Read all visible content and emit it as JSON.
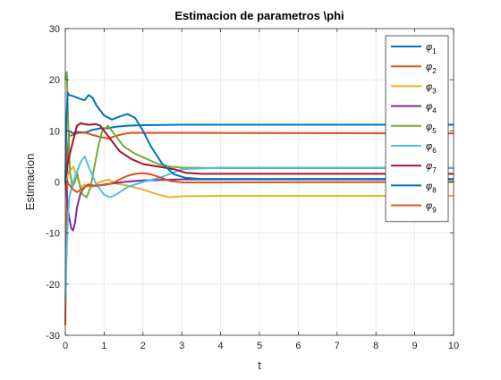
{
  "chart_data": {
    "type": "line",
    "title": "Estimacion de parametros \\phi",
    "xlabel": "t",
    "ylabel": "Estimacion",
    "xlim": [
      0,
      10
    ],
    "ylim": [
      -30,
      30
    ],
    "xticks": [
      0,
      1,
      2,
      3,
      4,
      5,
      6,
      7,
      8,
      9,
      10
    ],
    "yticks": [
      -30,
      -20,
      -10,
      0,
      10,
      20,
      30
    ],
    "xtick_labels": [
      "0",
      "1",
      "2",
      "3",
      "4",
      "5",
      "6",
      "7",
      "8",
      "9",
      "10"
    ],
    "ytick_labels": [
      "-30",
      "-20",
      "-10",
      "0",
      "10",
      "20",
      "30"
    ],
    "grid": true,
    "legend_position": "top-right",
    "series": [
      {
        "name": "φ",
        "sub": "1",
        "color": "#0072BD",
        "points": [
          [
            0,
            0
          ],
          [
            0.05,
            5
          ],
          [
            0.1,
            10
          ],
          [
            0.2,
            9.5
          ],
          [
            0.3,
            9.8
          ],
          [
            0.5,
            9.6
          ],
          [
            0.7,
            10.2
          ],
          [
            0.9,
            10.5
          ],
          [
            1.1,
            10.5
          ],
          [
            1.3,
            10.8
          ],
          [
            1.6,
            11.0
          ],
          [
            2,
            11.1
          ],
          [
            3,
            11.2
          ],
          [
            10,
            11.2
          ]
        ]
      },
      {
        "name": "φ",
        "sub": "2",
        "color": "#D95319",
        "points": [
          [
            0,
            -28
          ],
          [
            0.03,
            -10
          ],
          [
            0.06,
            6
          ],
          [
            0.1,
            9
          ],
          [
            0.2,
            9.2
          ],
          [
            0.3,
            9.5
          ],
          [
            0.5,
            9.7
          ],
          [
            0.7,
            9.2
          ],
          [
            0.9,
            8.8
          ],
          [
            1.1,
            8.5
          ],
          [
            1.3,
            9
          ],
          [
            1.5,
            9.4
          ],
          [
            1.7,
            9.6
          ],
          [
            2,
            9.6
          ],
          [
            3,
            9.6
          ],
          [
            10,
            9.5
          ]
        ]
      },
      {
        "name": "φ",
        "sub": "3",
        "color": "#EDB120",
        "points": [
          [
            0,
            0
          ],
          [
            0.1,
            2
          ],
          [
            0.2,
            3
          ],
          [
            0.3,
            1
          ],
          [
            0.4,
            -1
          ],
          [
            0.5,
            -0.5
          ],
          [
            0.7,
            -1
          ],
          [
            0.9,
            0
          ],
          [
            1.1,
            0.5
          ],
          [
            1.3,
            -0.3
          ],
          [
            1.6,
            -0.7
          ],
          [
            2,
            -1.5
          ],
          [
            2.4,
            -2.5
          ],
          [
            2.7,
            -3
          ],
          [
            3,
            -2.8
          ],
          [
            4,
            -2.7
          ],
          [
            10,
            -2.7
          ]
        ]
      },
      {
        "name": "φ",
        "sub": "4",
        "color": "#7E2F8E",
        "points": [
          [
            0,
            0
          ],
          [
            0.08,
            -6
          ],
          [
            0.15,
            -9
          ],
          [
            0.2,
            -9.5
          ],
          [
            0.25,
            -8
          ],
          [
            0.3,
            -5
          ],
          [
            0.4,
            -2
          ],
          [
            0.5,
            -1
          ],
          [
            0.6,
            -0.5
          ],
          [
            0.8,
            -0.8
          ],
          [
            1,
            -0.5
          ],
          [
            1.5,
            0
          ],
          [
            2,
            0.3
          ],
          [
            3,
            0.5
          ],
          [
            10,
            0.5
          ]
        ]
      },
      {
        "name": "φ",
        "sub": "5",
        "color": "#77AC30",
        "points": [
          [
            0,
            20
          ],
          [
            0.04,
            21.5
          ],
          [
            0.08,
            10
          ],
          [
            0.12,
            2
          ],
          [
            0.18,
            -1
          ],
          [
            0.25,
            0
          ],
          [
            0.3,
            2
          ],
          [
            0.38,
            -1
          ],
          [
            0.45,
            -2.5
          ],
          [
            0.55,
            -3
          ],
          [
            0.65,
            -1
          ],
          [
            0.75,
            3
          ],
          [
            0.85,
            7
          ],
          [
            0.95,
            10
          ],
          [
            1.1,
            11
          ],
          [
            1.3,
            9
          ],
          [
            1.5,
            7
          ],
          [
            1.8,
            5.5
          ],
          [
            2.1,
            4.5
          ],
          [
            2.4,
            3.5
          ],
          [
            2.7,
            3
          ],
          [
            3,
            2.8
          ],
          [
            4,
            2.7
          ],
          [
            10,
            2.7
          ]
        ]
      },
      {
        "name": "φ",
        "sub": "6",
        "color": "#4DBEEE",
        "points": [
          [
            0,
            -23
          ],
          [
            0.05,
            -10
          ],
          [
            0.1,
            -3
          ],
          [
            0.2,
            0
          ],
          [
            0.3,
            2
          ],
          [
            0.4,
            4
          ],
          [
            0.5,
            5
          ],
          [
            0.6,
            3
          ],
          [
            0.8,
            -0.5
          ],
          [
            1,
            -2.5
          ],
          [
            1.15,
            -3
          ],
          [
            1.3,
            -2.5
          ],
          [
            1.6,
            -1
          ],
          [
            2,
            0
          ],
          [
            2.5,
            1
          ],
          [
            3,
            2.5
          ],
          [
            4,
            2.8
          ],
          [
            10,
            2.8
          ]
        ]
      },
      {
        "name": "φ",
        "sub": "7",
        "color": "#A2142F",
        "points": [
          [
            0,
            0
          ],
          [
            0.05,
            3
          ],
          [
            0.1,
            5
          ],
          [
            0.2,
            8
          ],
          [
            0.3,
            11
          ],
          [
            0.4,
            11.5
          ],
          [
            0.5,
            11.3
          ],
          [
            0.6,
            11.2
          ],
          [
            0.8,
            11.3
          ],
          [
            0.9,
            11
          ],
          [
            1,
            10
          ],
          [
            1.2,
            8
          ],
          [
            1.4,
            6
          ],
          [
            1.7,
            4.5
          ],
          [
            2,
            3.5
          ],
          [
            2.4,
            3
          ],
          [
            2.8,
            2.5
          ],
          [
            3.1,
            1.8
          ],
          [
            3.5,
            1.6
          ],
          [
            4,
            1.6
          ],
          [
            10,
            1.6
          ]
        ]
      },
      {
        "name": "φ",
        "sub": "8",
        "color": "#0072BD",
        "points": [
          [
            0,
            0
          ],
          [
            0.03,
            12
          ],
          [
            0.06,
            17.5
          ],
          [
            0.1,
            17
          ],
          [
            0.2,
            16.8
          ],
          [
            0.3,
            16.5
          ],
          [
            0.4,
            16.2
          ],
          [
            0.5,
            16
          ],
          [
            0.6,
            17
          ],
          [
            0.7,
            16.5
          ],
          [
            0.8,
            15
          ],
          [
            1,
            13
          ],
          [
            1.2,
            12.2
          ],
          [
            1.4,
            12.8
          ],
          [
            1.6,
            13.3
          ],
          [
            1.8,
            12.5
          ],
          [
            2,
            10
          ],
          [
            2.2,
            7
          ],
          [
            2.5,
            3.5
          ],
          [
            2.8,
            1.5
          ],
          [
            3.1,
            0.8
          ],
          [
            3.5,
            0.6
          ],
          [
            4,
            0.6
          ],
          [
            10,
            0.6
          ]
        ]
      },
      {
        "name": "φ",
        "sub": "9",
        "color": "#D95319",
        "points": [
          [
            0,
            0
          ],
          [
            0.1,
            -0.5
          ],
          [
            0.2,
            -1.5
          ],
          [
            0.3,
            -2
          ],
          [
            0.4,
            -1.5
          ],
          [
            0.5,
            -1
          ],
          [
            0.6,
            -0.7
          ],
          [
            0.8,
            -0.7
          ],
          [
            1,
            -0.6
          ],
          [
            1.2,
            -0.3
          ],
          [
            1.4,
            0.5
          ],
          [
            1.6,
            1.2
          ],
          [
            1.8,
            1.6
          ],
          [
            2,
            1.7
          ],
          [
            2.2,
            1.5
          ],
          [
            2.4,
            1
          ],
          [
            2.7,
            0.2
          ],
          [
            3,
            -0.1
          ],
          [
            4,
            -0.1
          ],
          [
            10,
            0
          ]
        ]
      }
    ]
  }
}
